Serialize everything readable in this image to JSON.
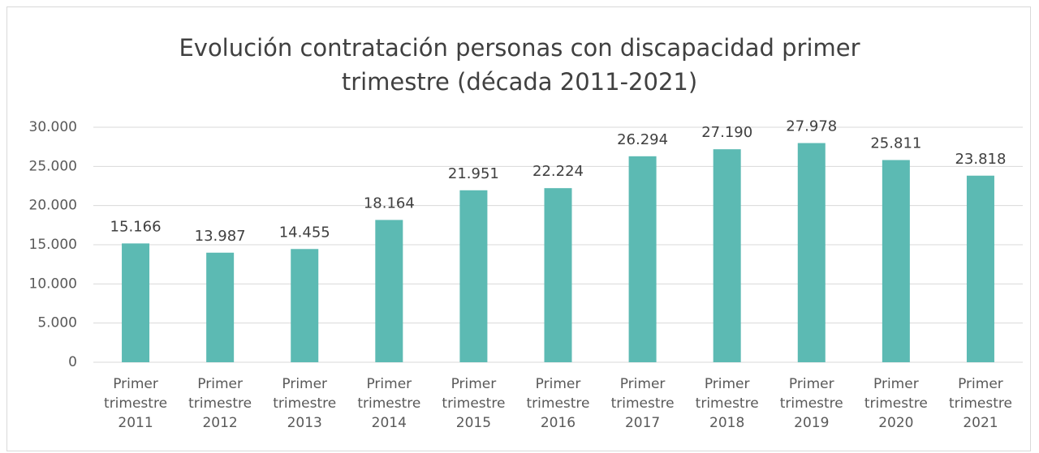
{
  "chart_data": {
    "type": "bar",
    "title": "Evolución contratación personas con discapacidad primer trimestre (década 2011-2021)",
    "categories": [
      "Primer trimestre 2011",
      "Primer trimestre 2012",
      "Primer trimestre 2013",
      "Primer trimestre 2014",
      "Primer trimestre 2015",
      "Primer trimestre 2016",
      "Primer trimestre 2017",
      "Primer trimestre 2018",
      "Primer trimestre 2019",
      "Primer trimestre 2020",
      "Primer trimestre 2021"
    ],
    "values": [
      15166,
      13987,
      14455,
      18164,
      21951,
      22224,
      26294,
      27190,
      27978,
      25811,
      23818
    ],
    "value_labels": [
      "15.166",
      "13.987",
      "14.455",
      "18.164",
      "21.951",
      "22.224",
      "26.294",
      "27.190",
      "27.978",
      "25.811",
      "23.818"
    ],
    "color": "#5cbab3",
    "ylim": [
      0,
      30000
    ],
    "yticks": [
      0,
      {
        "value": 5000,
        "label": "5.000"
      },
      {
        "value": 10000,
        "label": "10.000"
      },
      {
        "value": 15000,
        "label": "15.000"
      },
      {
        "value": 20000,
        "label": "20.000"
      },
      {
        "value": 25000,
        "label": "25.000"
      },
      {
        "value": 30000,
        "label": "30.000"
      }
    ],
    "grid": true
  }
}
